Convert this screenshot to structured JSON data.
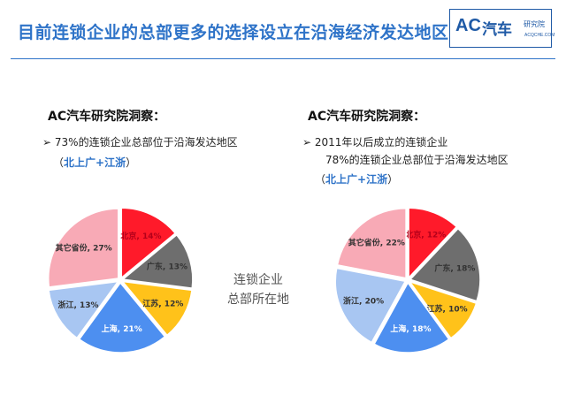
{
  "header": {
    "title": "目前连锁企业的总部更多的选择设立在沿海经济发达地区",
    "logo_ac": "AC",
    "logo_qc": "汽车",
    "logo_yjy": "研究院",
    "logo_site": "ACQCHE.COM"
  },
  "left": {
    "insight": "AC汽车研究院洞察：",
    "bullet_marker": "➢",
    "line1": "73%的连锁企业总部位于沿海发达地区",
    "paren_open": "（",
    "highlight": "北上广+江浙",
    "paren_close": "）"
  },
  "right": {
    "insight": "AC汽车研究院洞察：",
    "bullet_marker": "➢",
    "line1": "2011年以后成立的连锁企业",
    "line2": "78%的连锁企业总部位于沿海发达地区",
    "paren_open": "（",
    "highlight": "北上广+江浙",
    "paren_close": "）"
  },
  "center": {
    "line1": "连锁企业",
    "line2": "总部所在地"
  },
  "chart_data": [
    {
      "type": "pie",
      "labels": [
        "北京",
        "广东",
        "江苏",
        "上海",
        "浙江",
        "其它省份"
      ],
      "values": [
        14,
        13,
        12,
        21,
        13,
        27
      ],
      "colors": [
        "#ff1a2a",
        "#6e6e6e",
        "#ffc21a",
        "#4d8ff0",
        "#a8c6f2",
        "#f8aab6"
      ]
    },
    {
      "type": "pie",
      "labels": [
        "北京",
        "广东",
        "江苏",
        "上海",
        "浙江",
        "其它省份"
      ],
      "values": [
        12,
        18,
        10,
        18,
        20,
        22
      ],
      "colors": [
        "#ff1a2a",
        "#6e6e6e",
        "#ffc21a",
        "#4d8ff0",
        "#a8c6f2",
        "#f8aab6"
      ]
    }
  ]
}
